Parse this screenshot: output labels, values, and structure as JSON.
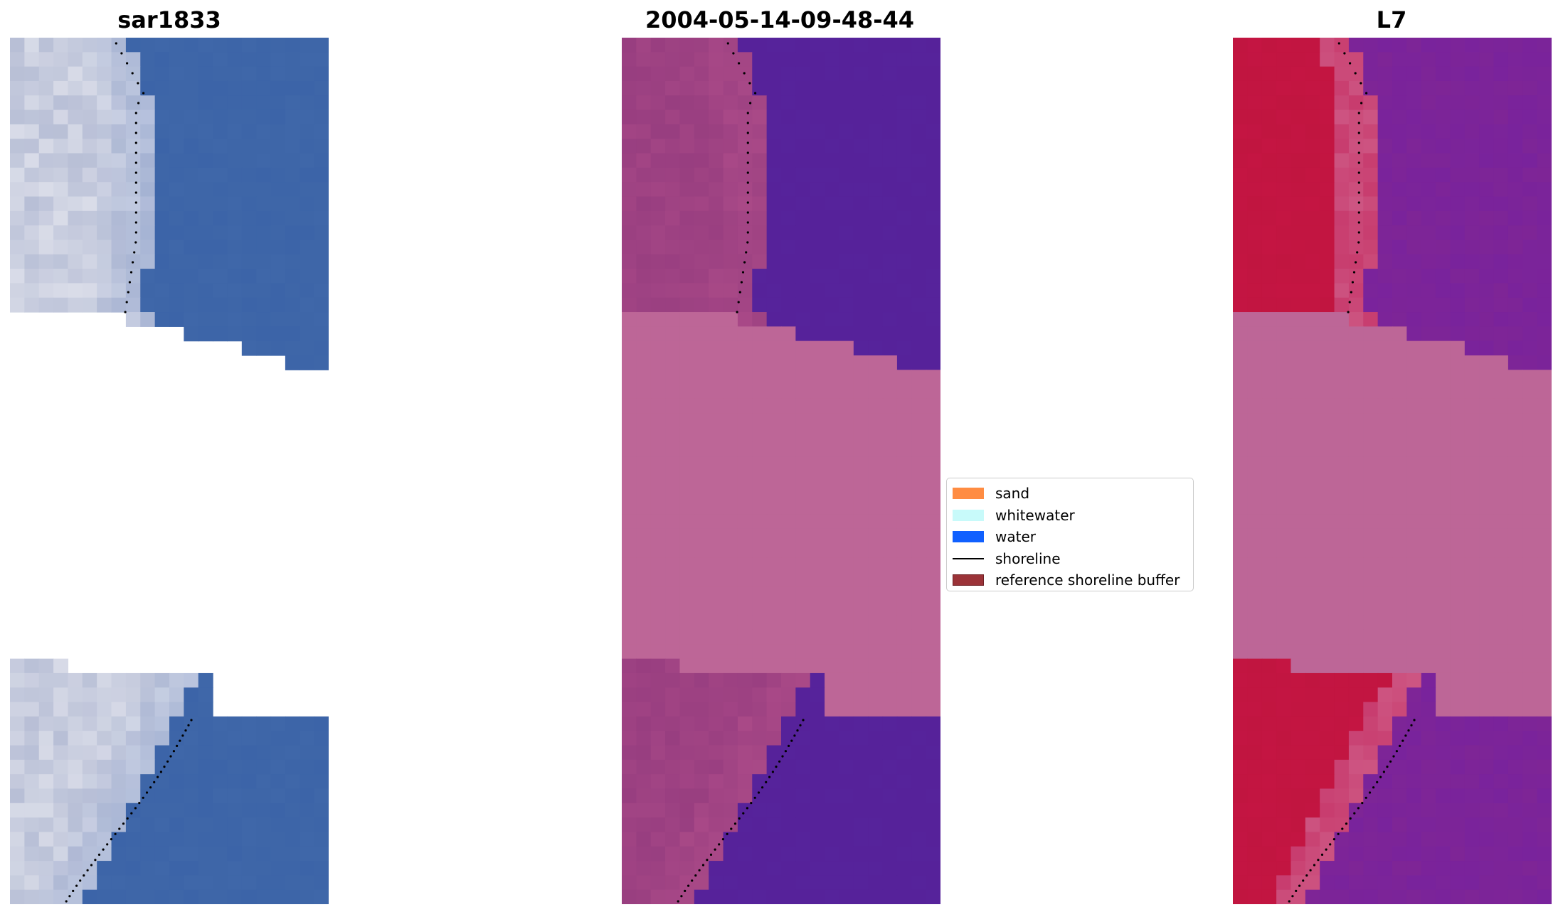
{
  "panels": [
    {
      "title": "sar1833"
    },
    {
      "title": "2004-05-14-09-48-44"
    },
    {
      "title": "L7"
    }
  ],
  "legend": {
    "items": [
      {
        "label": "sand",
        "type": "patch",
        "color": "#ff8c42"
      },
      {
        "label": "whitewater",
        "type": "patch",
        "color": "#c8fafa"
      },
      {
        "label": "water",
        "type": "patch",
        "color": "#1060ff"
      },
      {
        "label": "shoreline",
        "type": "line",
        "color": "#000000"
      },
      {
        "label": "reference shoreline buffer",
        "type": "patch",
        "color": "#9b3338"
      }
    ]
  },
  "colors": {
    "rgb_water": "#3c64a8",
    "index_land": "#983e80",
    "index_water": "#56229a",
    "index_nodata": "#bd6697",
    "class_land": "#c11540",
    "class_water": "#7e2596",
    "class_nodata": "#bd6697",
    "shoreline": "#000000"
  }
}
